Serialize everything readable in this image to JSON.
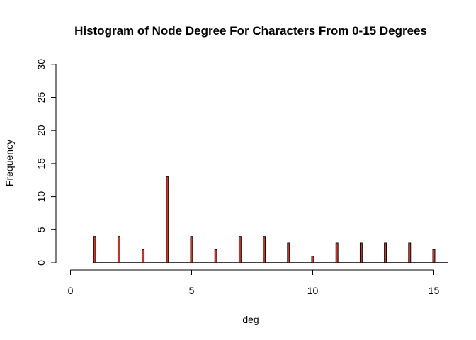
{
  "chart_data": {
    "type": "bar",
    "title": "Histogram of Node Degree For Characters From 0-15 Degrees",
    "xlabel": "deg",
    "ylabel": "Frequency",
    "xlim": [
      0,
      15.6
    ],
    "ylim": [
      0,
      30
    ],
    "x_ticks": [
      "0",
      "5",
      "10",
      "15"
    ],
    "y_ticks": [
      "0",
      "5",
      "10",
      "15",
      "20",
      "25",
      "30"
    ],
    "x_tick_values": [
      0,
      5,
      10,
      15
    ],
    "y_tick_values": [
      0,
      5,
      10,
      15,
      20,
      25,
      30
    ],
    "x": [
      1,
      2,
      3,
      4,
      5,
      6,
      7,
      8,
      9,
      10,
      11,
      12,
      13,
      14,
      15
    ],
    "values": [
      4,
      4,
      2,
      13,
      4,
      2,
      4,
      4,
      3,
      1,
      3,
      3,
      3,
      3,
      2
    ],
    "bar_fill_color": "#c0392b",
    "bar_border_color": "#000000",
    "grid": false
  }
}
